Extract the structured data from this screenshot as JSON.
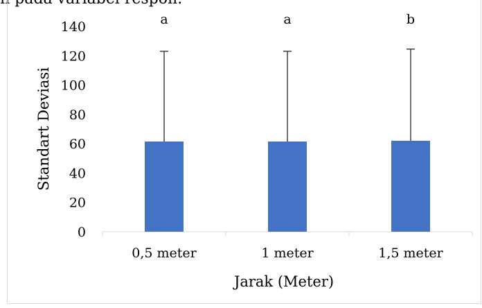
{
  "caption_fragment": "n pada variabel respon.",
  "chart_data": {
    "type": "bar",
    "categories": [
      "0,5 meter",
      "1 meter",
      "1,5 meter"
    ],
    "values": [
      61.5,
      61.5,
      62
    ],
    "error_upper": [
      123,
      123,
      124.5
    ],
    "significance_letters": [
      "a",
      "a",
      "b"
    ],
    "title": "",
    "xlabel": "Jarak (Meter)",
    "ylabel": "Standart Deviasi",
    "ylim": [
      0,
      140
    ],
    "yticks": [
      0,
      20,
      40,
      60,
      80,
      100,
      120,
      140
    ],
    "grid": false,
    "bar_color": "#4472c4",
    "errorbar_color": "#404040"
  }
}
